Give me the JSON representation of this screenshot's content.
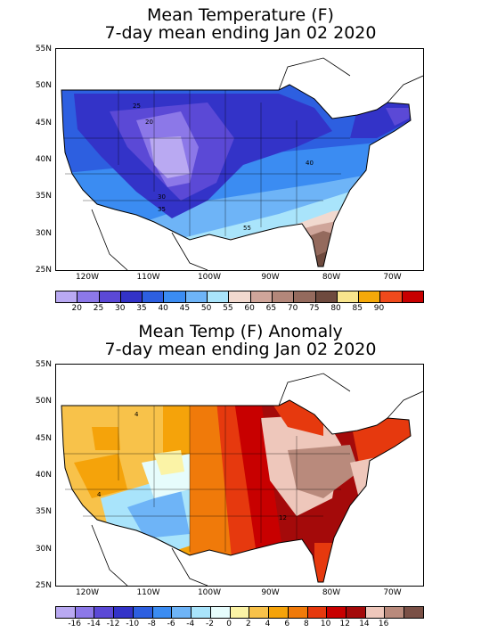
{
  "top": {
    "title_line1": "Mean Temperature (F)",
    "title_line2": "7-day mean ending Jan 02 2020",
    "lat_labels": [
      "55N",
      "50N",
      "45N",
      "40N",
      "35N",
      "30N",
      "25N"
    ],
    "lon_labels": [
      "120W",
      "110W",
      "100W",
      "90W",
      "80W",
      "70W"
    ],
    "contour_labels": [
      "25",
      "20",
      "30",
      "35",
      "40",
      "55"
    ],
    "colorbar": {
      "colors": [
        "#b9a9f2",
        "#8c78e8",
        "#5b49d6",
        "#3333c8",
        "#2d5fe0",
        "#3b8cf2",
        "#6eb4f7",
        "#a9e4fb",
        "#f1d9cf",
        "#cfa59a",
        "#b3877a",
        "#946a5d",
        "#6e4a3e",
        "#f8e58d",
        "#f5a90a",
        "#f04a1c",
        "#c80000"
      ],
      "labels": [
        "20",
        "25",
        "30",
        "35",
        "40",
        "45",
        "50",
        "55",
        "60",
        "65",
        "70",
        "75",
        "80",
        "85",
        "90"
      ]
    }
  },
  "bottom": {
    "title_line1": "Mean Temp (F) Anomaly",
    "title_line2": "7-day mean ending Jan 02 2020",
    "lat_labels": [
      "55N",
      "50N",
      "45N",
      "40N",
      "35N",
      "30N",
      "25N"
    ],
    "lon_labels": [
      "120W",
      "110W",
      "100W",
      "90W",
      "80W",
      "70W"
    ],
    "contour_labels": [
      "4",
      "4",
      "12"
    ],
    "colorbar": {
      "colors": [
        "#b9a9f2",
        "#8c78e8",
        "#5b49d6",
        "#3333c8",
        "#2d5fe0",
        "#3b8cf2",
        "#6eb4f7",
        "#a9e4fb",
        "#e6fcfc",
        "#fbf3a6",
        "#f8c24a",
        "#f5a30a",
        "#f07a0a",
        "#e6390e",
        "#c80000",
        "#a40a0a",
        "#eec7bb",
        "#b98a7c",
        "#7a5046"
      ],
      "labels": [
        "-16",
        "-14",
        "-12",
        "-10",
        "-8",
        "-6",
        "-4",
        "-2",
        "0",
        "2",
        "4",
        "6",
        "8",
        "10",
        "12",
        "14",
        "16"
      ]
    }
  }
}
